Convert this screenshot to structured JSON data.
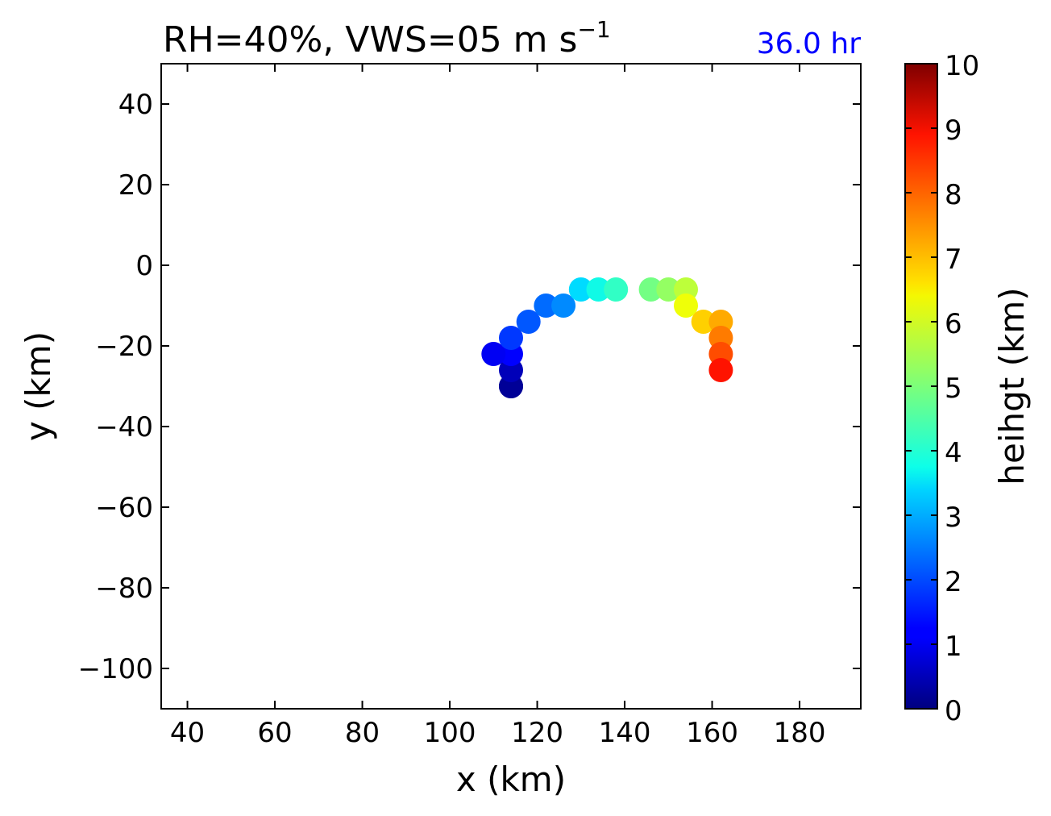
{
  "chart_data": {
    "type": "scatter",
    "title": "RH=40%, VWS=05 m s",
    "title_superscript": "−1",
    "time_label": "36.0 hr",
    "xlabel": "x (km)",
    "ylabel": "y (km)",
    "xlim": [
      34,
      194
    ],
    "ylim": [
      -110,
      50
    ],
    "xticks": [
      40,
      60,
      80,
      100,
      120,
      140,
      160,
      180
    ],
    "yticks": [
      40,
      20,
      0,
      -20,
      -40,
      -60,
      -80,
      -100
    ],
    "xtick_labels": [
      "40",
      "60",
      "80",
      "100",
      "120",
      "140",
      "160",
      "180"
    ],
    "ytick_labels": [
      "40",
      "20",
      "0",
      "−20",
      "−40",
      "−60",
      "−80",
      "−100"
    ],
    "colorbar": {
      "label": "heihgt (km)",
      "range": [
        0,
        10
      ],
      "colormap": "jet",
      "tick_labels": [
        "0",
        "1",
        "2",
        "3",
        "4",
        "5",
        "6",
        "7",
        "8",
        "9",
        "10"
      ]
    },
    "grid": false,
    "points": [
      {
        "x": 114,
        "y": -30,
        "height": 0.0
      },
      {
        "x": 114,
        "y": -30,
        "height": 0.2
      },
      {
        "x": 114,
        "y": -26,
        "height": 0.5
      },
      {
        "x": 114,
        "y": -22,
        "height": 1.2
      },
      {
        "x": 110,
        "y": -22,
        "height": 1.0
      },
      {
        "x": 114,
        "y": -18,
        "height": 1.8
      },
      {
        "x": 118,
        "y": -14,
        "height": 2.1
      },
      {
        "x": 122,
        "y": -10,
        "height": 2.3
      },
      {
        "x": 126,
        "y": -10,
        "height": 2.6
      },
      {
        "x": 130,
        "y": -6,
        "height": 3.4
      },
      {
        "x": 134,
        "y": -6,
        "height": 3.7
      },
      {
        "x": 138,
        "y": -6,
        "height": 4.1
      },
      {
        "x": 146,
        "y": -6,
        "height": 4.9
      },
      {
        "x": 150,
        "y": -6,
        "height": 5.3
      },
      {
        "x": 154,
        "y": -6,
        "height": 5.8
      },
      {
        "x": 154,
        "y": -10,
        "height": 6.4
      },
      {
        "x": 158,
        "y": -14,
        "height": 6.9
      },
      {
        "x": 162,
        "y": -14,
        "height": 7.3
      },
      {
        "x": 162,
        "y": -18,
        "height": 7.8
      },
      {
        "x": 162,
        "y": -22,
        "height": 8.3
      },
      {
        "x": 162,
        "y": -26,
        "height": 8.9
      }
    ]
  }
}
